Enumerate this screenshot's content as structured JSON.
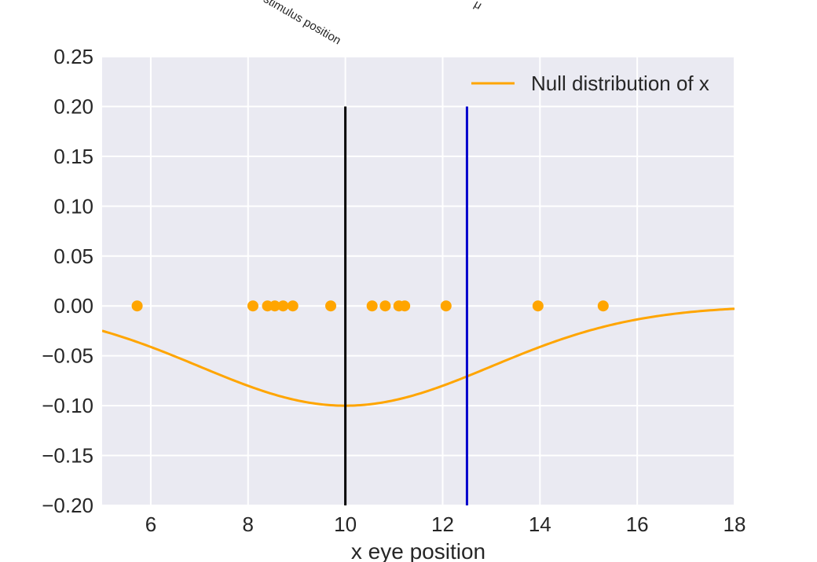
{
  "chart_data": {
    "type": "scatter",
    "xlabel": "x eye position",
    "ylabel": "",
    "xlim": [
      5,
      18
    ],
    "ylim": [
      -0.2,
      0.25
    ],
    "xticks": [
      6,
      8,
      10,
      12,
      14,
      16,
      18
    ],
    "yticks": [
      -0.2,
      -0.15,
      -0.1,
      -0.05,
      0.0,
      0.05,
      0.1,
      0.15,
      0.2,
      0.25
    ],
    "grid": true,
    "legend_placement": "top-right",
    "series": [
      {
        "kind": "line",
        "name": "Null distribution of x",
        "color": "#ffa500",
        "mean": 10,
        "sd": 3,
        "offset": -0.1,
        "note_formula": "y = offset * exp(-(x-mean)^2 / (2 sd^2))"
      },
      {
        "kind": "scatter",
        "color": "#ffa500",
        "x": [
          5.72,
          8.1,
          8.4,
          8.55,
          8.72,
          8.92,
          9.7,
          10.55,
          10.82,
          11.1,
          11.22,
          12.07,
          13.96,
          15.3
        ],
        "y": [
          0,
          0,
          0,
          0,
          0,
          0,
          0,
          0,
          0,
          0,
          0,
          0,
          0,
          0
        ]
      }
    ],
    "vlines": [
      {
        "x": 10,
        "ymin": -0.2,
        "ymax": 0.2,
        "color": "#000000"
      },
      {
        "x": 12.5,
        "ymin": -0.2,
        "ymax": 0.2,
        "color": "#0000cc"
      }
    ],
    "annotations": [
      {
        "text": "stimulus position",
        "x": 10
      },
      {
        "text": "μ",
        "x": 12.5
      }
    ]
  },
  "colors": {
    "plot_bg": "#eaeaf2",
    "grid": "#ffffff"
  }
}
